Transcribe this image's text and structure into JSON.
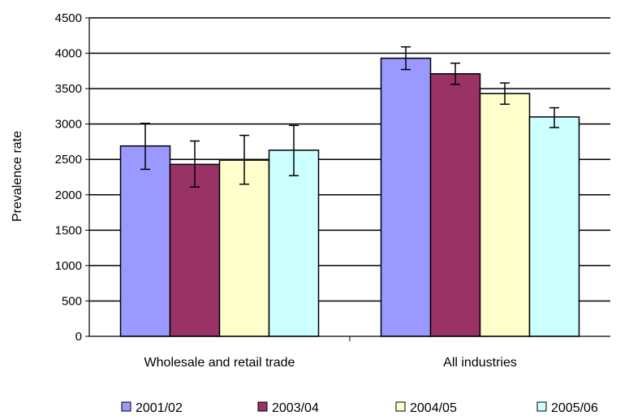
{
  "chart_data": {
    "type": "bar",
    "title": "",
    "xlabel": "",
    "ylabel": "Prevalence rate",
    "ylim": [
      0,
      4500
    ],
    "ytick_step": 500,
    "grid": true,
    "legend_position": "bottom",
    "categories": [
      "Wholesale and retail trade",
      "All industries"
    ],
    "series": [
      {
        "name": "2001/02",
        "color": "#9999ff",
        "values": [
          2690,
          3930
        ],
        "err_low": [
          2360,
          3770
        ],
        "err_high": [
          3010,
          4090
        ]
      },
      {
        "name": "2003/04",
        "color": "#993366",
        "values": [
          2430,
          3710
        ],
        "err_low": [
          2110,
          3560
        ],
        "err_high": [
          2760,
          3860
        ]
      },
      {
        "name": "2004/05",
        "color": "#ffffcc",
        "values": [
          2490,
          3430
        ],
        "err_low": [
          2150,
          3280
        ],
        "err_high": [
          2840,
          3580
        ]
      },
      {
        "name": "2005/06",
        "color": "#ccffff",
        "values": [
          2630,
          3100
        ],
        "err_low": [
          2270,
          2950
        ],
        "err_high": [
          2980,
          3230
        ]
      }
    ]
  }
}
